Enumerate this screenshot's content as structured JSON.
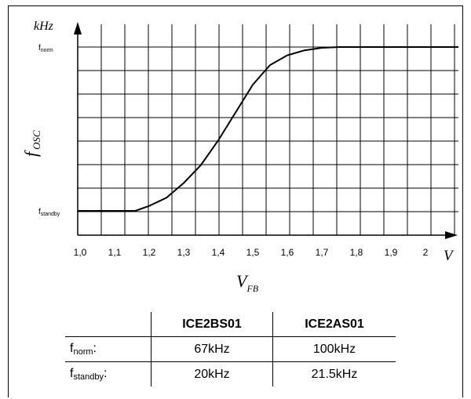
{
  "chart_data": {
    "type": "line",
    "x_ticks": [
      "1,0",
      "1,1",
      "1,2",
      "1,3",
      "1,4",
      "1,5",
      "1,6",
      "1,7",
      "1,8",
      "1,9",
      "2"
    ],
    "xlim": [
      1.0,
      2.0
    ],
    "x_unit": "V",
    "xlabel": {
      "main": "V",
      "sub": "FB"
    },
    "y_unit": "kHz",
    "ylabel": {
      "main": "f",
      "sub": "OSC"
    },
    "y_ticks": [
      {
        "main": "f",
        "sub": "norm",
        "level": 1
      },
      {
        "main": "f",
        "sub": "standby",
        "level": 0
      }
    ],
    "grid": true,
    "series": [
      {
        "x": [
          1.0,
          1.16,
          1.2,
          1.25,
          1.3,
          1.35,
          1.4,
          1.45,
          1.5,
          1.55,
          1.6,
          1.65,
          1.7,
          1.75,
          1.8,
          2.0
        ],
        "y": [
          0.0,
          0.0,
          0.03,
          0.08,
          0.17,
          0.28,
          0.43,
          0.6,
          0.77,
          0.89,
          0.95,
          0.98,
          0.995,
          1.0,
          1.0,
          1.0
        ]
      }
    ]
  },
  "table": {
    "headers": [
      "",
      "ICE2BS01",
      "ICE2AS01"
    ],
    "rows": [
      {
        "label_main": "f",
        "label_sub": "norm",
        "label_suffix": ":",
        "values": [
          "67kHz",
          "100kHz"
        ]
      },
      {
        "label_main": "f",
        "label_sub": "standby",
        "label_suffix": ":",
        "values": [
          "20kHz",
          "21.5kHz"
        ]
      }
    ]
  }
}
